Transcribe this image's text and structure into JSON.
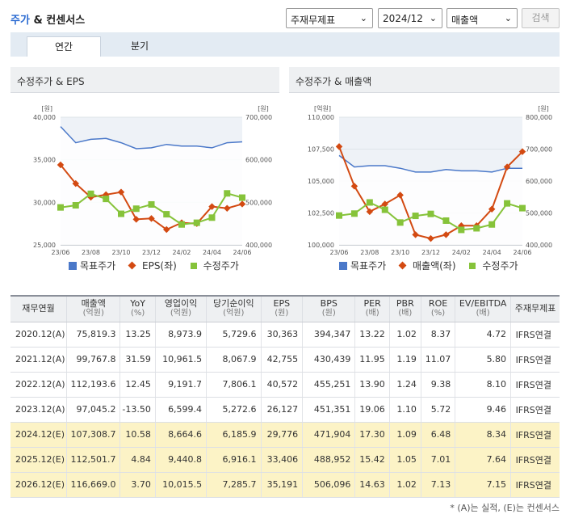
{
  "header": {
    "title_prefix": "주가",
    "title_suffix": " & 컨센서스",
    "select_type": "주재무제표",
    "select_period": "2024/12",
    "select_metric": "매출액",
    "search_label": "검색"
  },
  "tabs": [
    {
      "label": "연간",
      "active": true
    },
    {
      "label": "분기",
      "active": false
    }
  ],
  "chart_data": [
    {
      "type": "line",
      "title": "수정주가 & EPS",
      "x": [
        "23/06",
        "23/07",
        "23/08",
        "23/09",
        "23/10",
        "23/11",
        "23/12",
        "24/01",
        "24/02",
        "24/03",
        "24/04",
        "24/05",
        "24/06"
      ],
      "x_tick_labels": [
        "23/06",
        "23/08",
        "23/10",
        "23/12",
        "24/02",
        "24/04",
        "24/06"
      ],
      "left_axis": {
        "unit": "[원]",
        "ticks": [
          "40,000",
          "35,000",
          "30,000",
          "25,000"
        ],
        "range": [
          25000,
          40000
        ]
      },
      "right_axis": {
        "unit": "[원]",
        "ticks": [
          "700,000",
          "600,000",
          "500,000",
          "400,000"
        ],
        "range": [
          400000,
          700000
        ]
      },
      "series": [
        {
          "name": "목표주가",
          "axis": "left",
          "style": "area",
          "color": "#4a78c9",
          "values": [
            38900,
            37000,
            37400,
            37500,
            37000,
            36300,
            36400,
            36800,
            36600,
            36600,
            36400,
            37000,
            37100
          ]
        },
        {
          "name": "EPS(좌)",
          "axis": "left",
          "style": "line-diamond",
          "color": "#d34a12",
          "values": [
            34400,
            32200,
            30600,
            30900,
            31200,
            28000,
            28100,
            26800,
            27600,
            27500,
            29500,
            29300,
            29800
          ]
        },
        {
          "name": "수정주가",
          "axis": "right",
          "style": "line-square",
          "color": "#86c33a",
          "values": [
            488000,
            493000,
            520000,
            508000,
            473000,
            485000,
            495000,
            472000,
            448000,
            452000,
            464000,
            521000,
            511000
          ]
        }
      ]
    },
    {
      "type": "line",
      "title": "수정주가 & 매출액",
      "x": [
        "23/06",
        "23/07",
        "23/08",
        "23/09",
        "23/10",
        "23/11",
        "23/12",
        "24/01",
        "24/02",
        "24/03",
        "24/04",
        "24/05",
        "24/06"
      ],
      "x_tick_labels": [
        "23/06",
        "23/08",
        "23/10",
        "23/12",
        "24/02",
        "24/04",
        "24/06"
      ],
      "left_axis": {
        "unit": "[억원]",
        "ticks": [
          "110,000",
          "107,500",
          "105,000",
          "102,500",
          "100,000"
        ],
        "range": [
          100000,
          110000
        ]
      },
      "right_axis": {
        "unit": "[원]",
        "ticks": [
          "800,000",
          "700,000",
          "600,000",
          "500,000",
          "400,000"
        ],
        "range": [
          400000,
          800000
        ]
      },
      "series": [
        {
          "name": "목표주가",
          "axis": "left",
          "style": "area",
          "color": "#4a78c9",
          "values": [
            107000,
            106100,
            106200,
            106200,
            106000,
            105700,
            105700,
            105900,
            105800,
            105800,
            105700,
            106000,
            106000
          ]
        },
        {
          "name": "매출액(좌)",
          "axis": "left",
          "style": "line-diamond",
          "color": "#d34a12",
          "values": [
            107700,
            104600,
            102600,
            103200,
            103900,
            100800,
            100500,
            100800,
            101500,
            101500,
            102800,
            106100,
            107300
          ]
        },
        {
          "name": "수정주가",
          "axis": "right",
          "style": "line-square",
          "color": "#86c33a",
          "values": [
            492000,
            498000,
            533000,
            510000,
            470000,
            491000,
            497000,
            476000,
            447000,
            452000,
            464000,
            530000,
            515000
          ]
        }
      ]
    }
  ],
  "table": {
    "headers": [
      {
        "label": "재무연월",
        "unit": ""
      },
      {
        "label": "매출액",
        "unit": "(억원)"
      },
      {
        "label": "YoY",
        "unit": "(%)"
      },
      {
        "label": "영업이익",
        "unit": "(억원)"
      },
      {
        "label": "당기순이익",
        "unit": "(억원)"
      },
      {
        "label": "EPS",
        "unit": "(원)"
      },
      {
        "label": "BPS",
        "unit": "(원)"
      },
      {
        "label": "PER",
        "unit": "(배)"
      },
      {
        "label": "PBR",
        "unit": "(배)"
      },
      {
        "label": "ROE",
        "unit": "(%)"
      },
      {
        "label": "EV/EBITDA",
        "unit": "(배)"
      },
      {
        "label": "주재무제표",
        "unit": ""
      }
    ],
    "rows": [
      {
        "estimate": false,
        "cells": [
          "2020.12(A)",
          "75,819.3",
          "13.25",
          "8,973.9",
          "5,729.6",
          "30,363",
          "394,347",
          "13.22",
          "1.02",
          "8.37",
          "4.72",
          "IFRS연결"
        ]
      },
      {
        "estimate": false,
        "cells": [
          "2021.12(A)",
          "99,767.8",
          "31.59",
          "10,961.5",
          "8,067.9",
          "42,755",
          "430,439",
          "11.95",
          "1.19",
          "11.07",
          "5.80",
          "IFRS연결"
        ]
      },
      {
        "estimate": false,
        "cells": [
          "2022.12(A)",
          "112,193.6",
          "12.45",
          "9,191.7",
          "7,806.1",
          "40,572",
          "455,251",
          "13.90",
          "1.24",
          "9.38",
          "8.10",
          "IFRS연결"
        ]
      },
      {
        "estimate": false,
        "cells": [
          "2023.12(A)",
          "97,045.2",
          "-13.50",
          "6,599.4",
          "5,272.6",
          "26,127",
          "451,351",
          "19.06",
          "1.10",
          "5.72",
          "9.46",
          "IFRS연결"
        ]
      },
      {
        "estimate": true,
        "cells": [
          "2024.12(E)",
          "107,308.7",
          "10.58",
          "8,664.6",
          "6,185.9",
          "29,776",
          "471,904",
          "17.30",
          "1.09",
          "6.48",
          "8.34",
          "IFRS연결"
        ]
      },
      {
        "estimate": true,
        "cells": [
          "2025.12(E)",
          "112,501.7",
          "4.84",
          "9,440.8",
          "6,916.1",
          "33,406",
          "488,952",
          "15.42",
          "1.05",
          "7.01",
          "7.64",
          "IFRS연결"
        ]
      },
      {
        "estimate": true,
        "cells": [
          "2026.12(E)",
          "116,669.0",
          "3.70",
          "10,015.5",
          "7,285.7",
          "35,191",
          "506,096",
          "14.63",
          "1.02",
          "7.13",
          "7.15",
          "IFRS연결"
        ]
      }
    ]
  },
  "footnote": "* (A)는 실적, (E)는 컨센서스"
}
